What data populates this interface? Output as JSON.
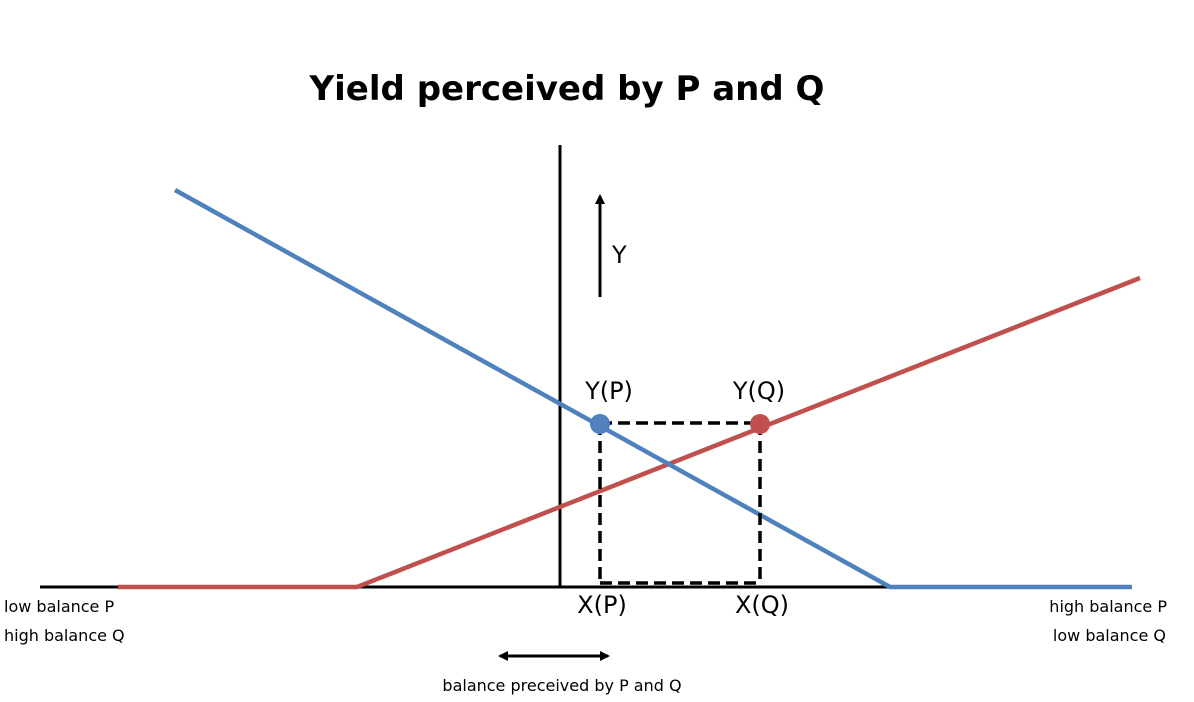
{
  "title": "Yield perceived by P and Q",
  "labels": {
    "y_axis": "Y",
    "point_p": "Y(P)",
    "point_q": "Y(Q)",
    "x_p": "X(P)",
    "x_q": "X(Q)",
    "left_line1": "low balance P",
    "left_line2": "high balance Q",
    "right_line1": "high balance P",
    "right_line2": "low balance Q",
    "bottom": "balance preceived by P and Q"
  },
  "colors": {
    "p_line": "#4f81bd",
    "q_line": "#c0504d",
    "axis": "#000000"
  }
}
